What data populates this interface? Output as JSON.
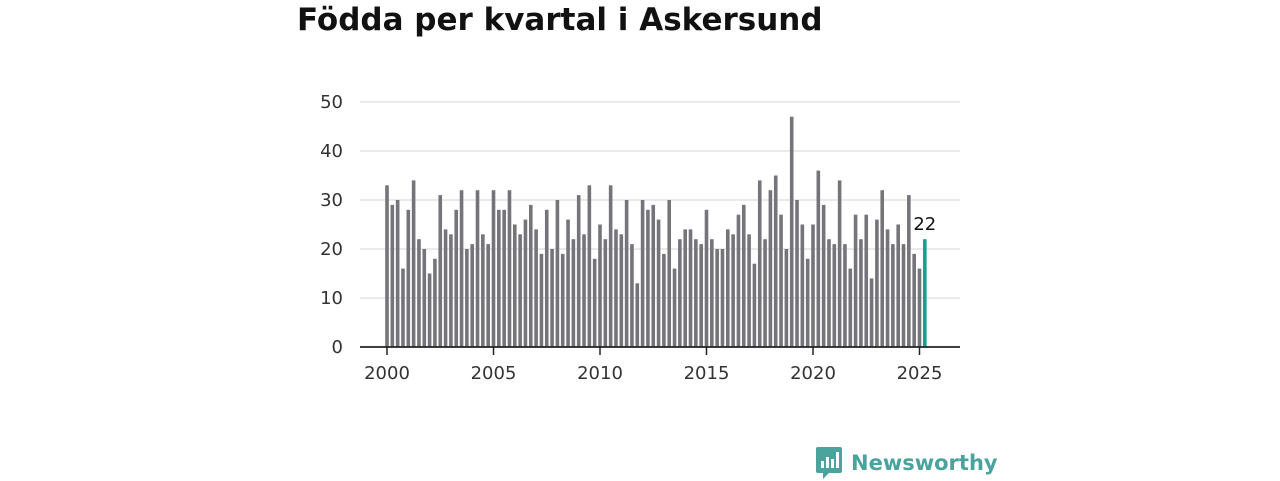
{
  "title": "Födda per kvartal i Askersund",
  "brand": {
    "name": "Newsworthy",
    "color": "#4aa39d"
  },
  "colors": {
    "bar": "#75747a",
    "highlight": "#1a9e8f",
    "grid": "#dddddd",
    "axis": "#222222"
  },
  "chart_data": {
    "type": "bar",
    "title": "Födda per kvartal i Askersund",
    "xlabel": "",
    "ylabel": "",
    "ylim": [
      0,
      50
    ],
    "yticks": [
      0,
      10,
      20,
      30,
      40,
      50
    ],
    "xticks": [
      2000,
      2005,
      2010,
      2015,
      2020,
      2025
    ],
    "grid": true,
    "legend": "none",
    "x_unit": "quarter",
    "series": [
      {
        "values": [
          33,
          29,
          30,
          16,
          28,
          34,
          22,
          20,
          15,
          18,
          31,
          24,
          23,
          28,
          32,
          20,
          21,
          32,
          23,
          21,
          32,
          28,
          28,
          32,
          25,
          23,
          26,
          29,
          24,
          19,
          28,
          20,
          30,
          19,
          26,
          22,
          31,
          23,
          33,
          18,
          25,
          22,
          33,
          24,
          23,
          30,
          21,
          13,
          30,
          28,
          29,
          26,
          19,
          30,
          16,
          22,
          24,
          24,
          22,
          21,
          28,
          22,
          20,
          20,
          24,
          23,
          27,
          29,
          23,
          17,
          34,
          22,
          32,
          35,
          27,
          20,
          47,
          30,
          25,
          18,
          25,
          36,
          29,
          22,
          21,
          34,
          21,
          16,
          27,
          22,
          27,
          14,
          26,
          32,
          24,
          21,
          25,
          21,
          31,
          19,
          16,
          22
        ]
      }
    ],
    "first_period": "2000 Q1",
    "last_period": "2025 Q2",
    "highlight": {
      "period": "2025 Q2",
      "value": 22,
      "label": "22"
    }
  }
}
